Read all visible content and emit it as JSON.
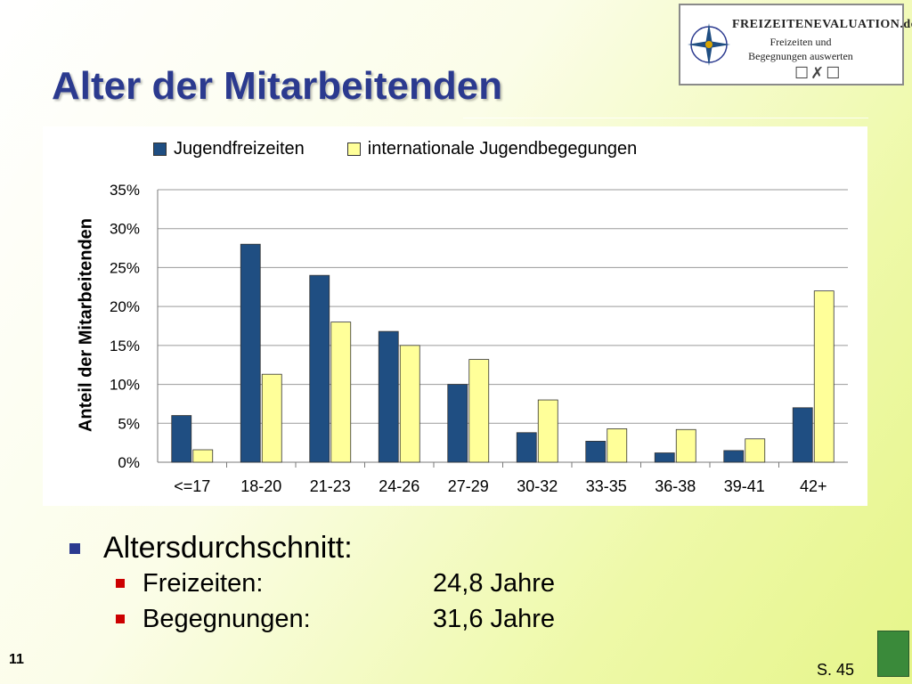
{
  "slide": {
    "title": "Alter der Mitarbeitenden",
    "page_number": "11",
    "reference": "S. 45"
  },
  "logo": {
    "brand": "FREIZEITENEVALUATION.de",
    "line1": "Freizeiten und",
    "line2": "Begegnungen auswerten"
  },
  "bullets": {
    "heading": "Altersdurchschnitt:",
    "items": [
      {
        "label": "Freizeiten:",
        "value": "24,8 Jahre"
      },
      {
        "label": "Begegnungen:",
        "value": "31,6 Jahre"
      }
    ]
  },
  "colors": {
    "title": "#2b3a8f",
    "series1": "#1f4e82",
    "series2": "#ffff99",
    "bullet_main": "#2b3a8f",
    "bullet_sub": "#cc0000"
  },
  "chart_data": {
    "type": "bar",
    "title": "",
    "xlabel": "",
    "ylabel": "Anteil der Mitarbeitenden",
    "categories": [
      "<=17",
      "18-20",
      "21-23",
      "24-26",
      "27-29",
      "30-32",
      "33-35",
      "36-38",
      "39-41",
      "42+"
    ],
    "series": [
      {
        "name": "Jugendfreizeiten",
        "values": [
          6,
          28,
          24,
          16.8,
          10,
          3.8,
          2.7,
          1.2,
          1.5,
          7
        ]
      },
      {
        "name": "internationale Jugendbegegungen",
        "values": [
          1.6,
          11.3,
          18,
          15,
          13.2,
          8,
          4.3,
          4.2,
          3,
          22
        ]
      }
    ],
    "ylim": [
      0,
      35
    ],
    "yticks": [
      "0%",
      "5%",
      "10%",
      "15%",
      "20%",
      "25%",
      "30%",
      "35%"
    ],
    "grid": true,
    "legend": "top"
  }
}
